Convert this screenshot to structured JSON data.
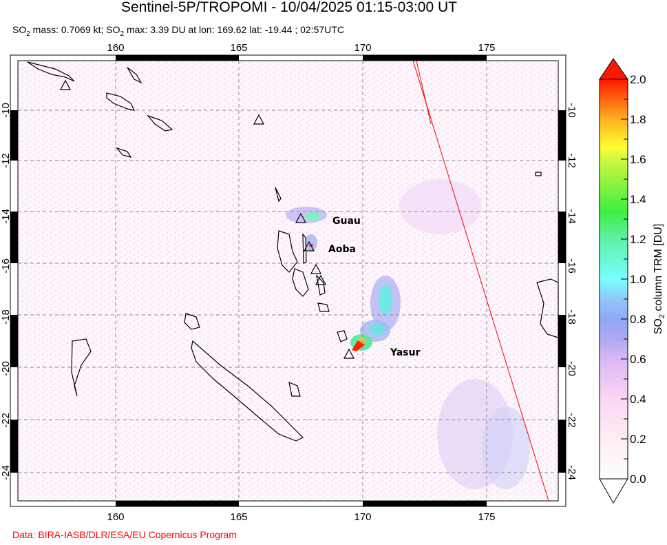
{
  "title": "Sentinel-5P/TROPOMI - 10/04/2025 01:15-03:00 UT",
  "subtitle": {
    "p1": "SO",
    "sub1": "2",
    "p2": " mass: 0.7069 kt; SO",
    "sub2": "2",
    "p3": " max: 3.39 DU at lon: 169.62 lat: -19.44 ; 02:57UTC"
  },
  "map": {
    "lon_ticks": [
      "160",
      "165",
      "170",
      "175"
    ],
    "lat_ticks": [
      "-10",
      "-12",
      "-14",
      "-16",
      "-18",
      "-20",
      "-22",
      "-24"
    ],
    "volcano_labels": [
      "Guau",
      "Aoba",
      "Yasur"
    ],
    "volcano_icon": "triangle-outline-icon",
    "plume_max_color": "#ff1800",
    "orbit_edge_color": "#ff0000"
  },
  "colorbar": {
    "label_p1": "SO",
    "label_sub": "2",
    "label_p2": " column TRM [DU]",
    "tick_labels": [
      "2.0",
      "1.8",
      "1.6",
      "1.4",
      "1.2",
      "1.0",
      "0.8",
      "0.6",
      "0.4",
      "0.2",
      "0.0"
    ],
    "range": [
      0.0,
      2.0
    ],
    "colors": [
      "#ffffff",
      "#fde6f0",
      "#f9c4f5",
      "#b0a0f0",
      "#8c9cf8",
      "#78ffff",
      "#40ee40",
      "#ffff30",
      "#ffb020",
      "#ff1800"
    ]
  },
  "credit": "Data: BIRA-IASB/DLR/ESA/EU Copernicus Program"
}
